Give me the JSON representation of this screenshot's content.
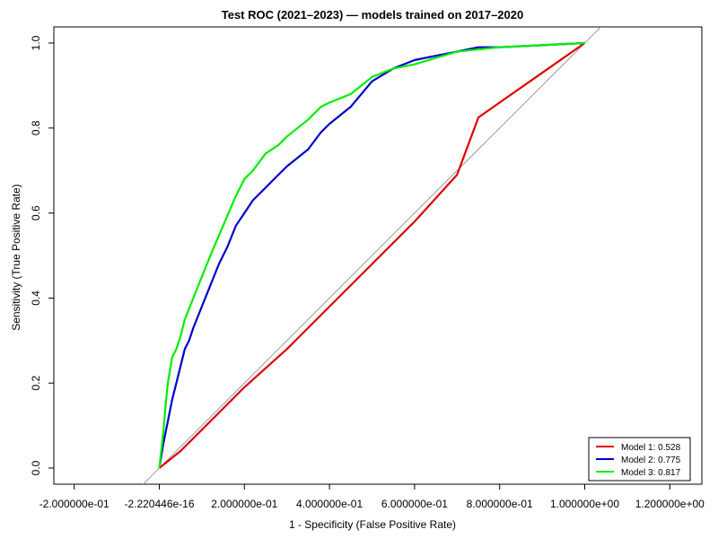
{
  "chart_data": {
    "type": "line",
    "title": "Test ROC (2021–2023) — models trained on 2017–2020",
    "xlabel": "1 - Specificity (False Positive Rate)",
    "ylabel": "Sensitivity (True Positive Rate)",
    "xlim": [
      -0.2,
      1.2
    ],
    "ylim": [
      0,
      1
    ],
    "grid": false,
    "legend_position": "bottom-right",
    "x_ticks": [
      {
        "value": -0.2,
        "label": "-2.000000e-01"
      },
      {
        "value": 0.0,
        "label": "-2.220446e-16"
      },
      {
        "value": 0.2,
        "label": "2.000000e-01"
      },
      {
        "value": 0.4,
        "label": "4.000000e-01"
      },
      {
        "value": 0.6,
        "label": "6.000000e-01"
      },
      {
        "value": 0.8,
        "label": "8.000000e-01"
      },
      {
        "value": 1.0,
        "label": "1.000000e+00"
      },
      {
        "value": 1.2,
        "label": "1.200000e+00"
      }
    ],
    "y_ticks": [
      {
        "value": 0.0,
        "label": "0.0"
      },
      {
        "value": 0.2,
        "label": "0.2"
      },
      {
        "value": 0.4,
        "label": "0.4"
      },
      {
        "value": 0.6,
        "label": "0.6"
      },
      {
        "value": 0.8,
        "label": "0.8"
      },
      {
        "value": 1.0,
        "label": "1.0"
      }
    ],
    "reference_line": {
      "x": [
        -0.04,
        1.04
      ],
      "y": [
        -0.04,
        1.04
      ],
      "color": "#9e9e9e"
    },
    "series": [
      {
        "name": "Model 1: 0.528",
        "color": "#e00000",
        "x": [
          0.0,
          0.05,
          0.1,
          0.15,
          0.2,
          0.25,
          0.3,
          0.4,
          0.5,
          0.6,
          0.7,
          0.75,
          0.8,
          0.9,
          1.0
        ],
        "y": [
          0.0,
          0.04,
          0.09,
          0.14,
          0.19,
          0.235,
          0.28,
          0.38,
          0.48,
          0.58,
          0.69,
          0.825,
          0.86,
          0.93,
          1.0
        ]
      },
      {
        "name": "Model 2: 0.775",
        "color": "#0000cc",
        "x": [
          0.0,
          0.01,
          0.02,
          0.03,
          0.04,
          0.05,
          0.06,
          0.07,
          0.08,
          0.1,
          0.12,
          0.14,
          0.16,
          0.18,
          0.2,
          0.22,
          0.25,
          0.28,
          0.3,
          0.35,
          0.38,
          0.4,
          0.45,
          0.5,
          0.55,
          0.6,
          0.65,
          0.7,
          0.75,
          0.8,
          0.9,
          1.0
        ],
        "y": [
          0.0,
          0.06,
          0.11,
          0.16,
          0.2,
          0.24,
          0.28,
          0.3,
          0.33,
          0.38,
          0.43,
          0.48,
          0.52,
          0.57,
          0.6,
          0.63,
          0.66,
          0.69,
          0.71,
          0.75,
          0.79,
          0.81,
          0.85,
          0.91,
          0.94,
          0.96,
          0.97,
          0.98,
          0.99,
          0.99,
          0.995,
          1.0
        ]
      },
      {
        "name": "Model 3: 0.817",
        "color": "#00ee00",
        "x": [
          0.0,
          0.01,
          0.015,
          0.02,
          0.03,
          0.04,
          0.05,
          0.06,
          0.08,
          0.1,
          0.12,
          0.15,
          0.18,
          0.2,
          0.22,
          0.25,
          0.28,
          0.3,
          0.35,
          0.38,
          0.4,
          0.45,
          0.5,
          0.55,
          0.6,
          0.65,
          0.7,
          0.8,
          0.9,
          1.0
        ],
        "y": [
          0.0,
          0.09,
          0.15,
          0.2,
          0.26,
          0.28,
          0.31,
          0.35,
          0.4,
          0.45,
          0.5,
          0.57,
          0.64,
          0.68,
          0.7,
          0.74,
          0.76,
          0.78,
          0.82,
          0.85,
          0.86,
          0.88,
          0.92,
          0.94,
          0.95,
          0.965,
          0.98,
          0.99,
          0.995,
          1.0
        ]
      }
    ]
  }
}
